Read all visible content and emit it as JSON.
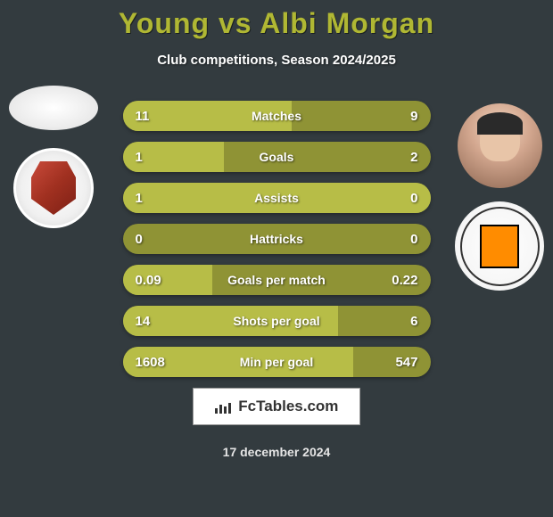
{
  "header": {
    "title": "Young vs Albi Morgan",
    "subtitle": "Club competitions, Season 2024/2025"
  },
  "colors": {
    "background": "#333b3f",
    "title_color": "#b0b733",
    "bar_bg": "#8f9335",
    "bar_fill": "#b7bd47",
    "text_white": "#ffffff"
  },
  "stats": [
    {
      "label": "Matches",
      "left_value": "11",
      "right_value": "9",
      "left_pct": 55,
      "right_pct": 45
    },
    {
      "label": "Goals",
      "left_value": "1",
      "right_value": "2",
      "left_pct": 33,
      "right_pct": 67
    },
    {
      "label": "Assists",
      "left_value": "1",
      "right_value": "0",
      "left_pct": 100,
      "right_pct": 0
    },
    {
      "label": "Hattricks",
      "left_value": "0",
      "right_value": "0",
      "left_pct": 0,
      "right_pct": 0
    },
    {
      "label": "Goals per match",
      "left_value": "0.09",
      "right_value": "0.22",
      "left_pct": 29,
      "right_pct": 71
    },
    {
      "label": "Shots per goal",
      "left_value": "14",
      "right_value": "6",
      "left_pct": 70,
      "right_pct": 30
    },
    {
      "label": "Min per goal",
      "left_value": "1608",
      "right_value": "547",
      "left_pct": 75,
      "right_pct": 25
    }
  ],
  "footer": {
    "brand": "FcTables.com",
    "date": "17 december 2024"
  }
}
